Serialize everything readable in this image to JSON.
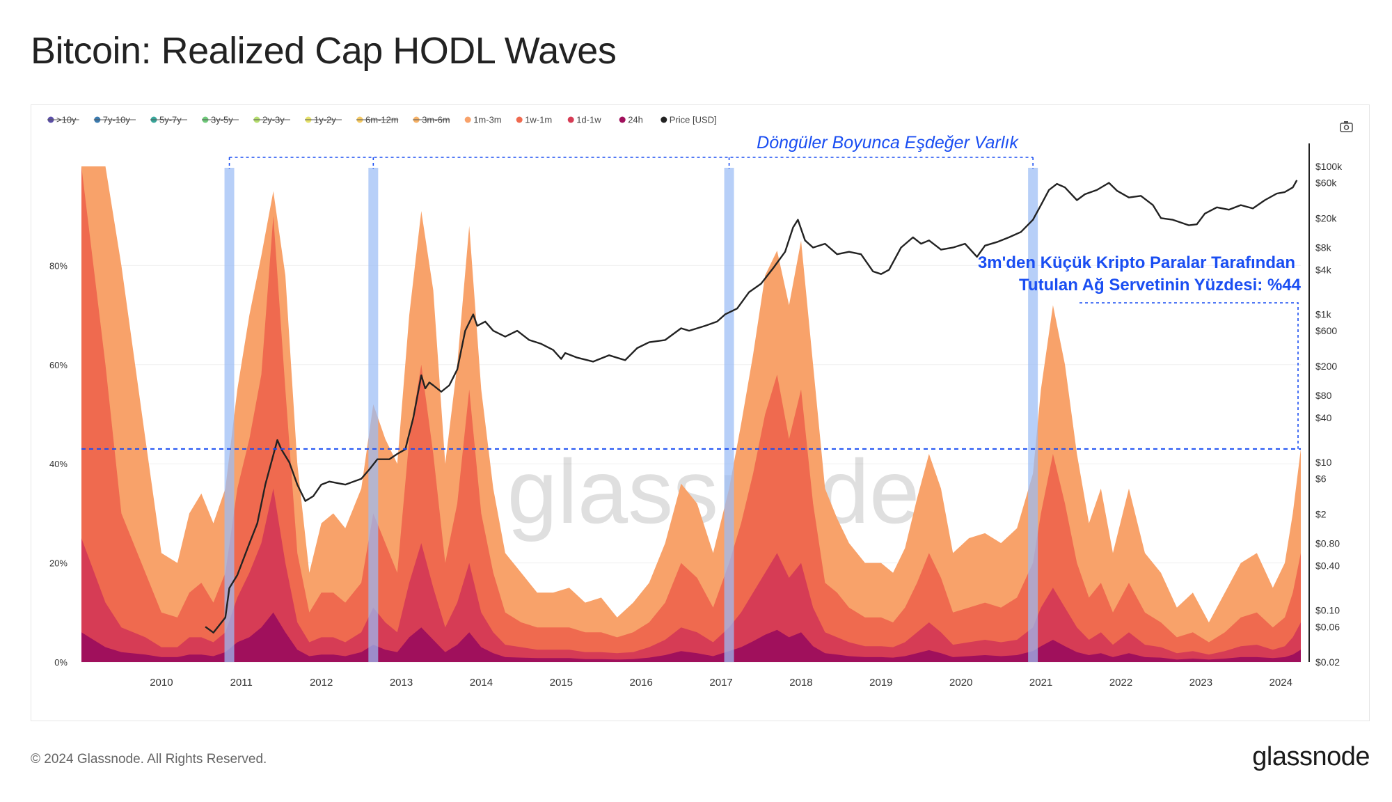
{
  "header": {
    "title": "Bitcoin: Realized Cap HODL Waves"
  },
  "footer": {
    "copyright": "© 2024 Glassnode. All Rights Reserved.",
    "logo": "glassnode"
  },
  "chart_data": {
    "type": "area",
    "title": "Bitcoin: Realized Cap HODL Waves",
    "watermark": "glassnode",
    "x_range": [
      2009.0,
      2024.25
    ],
    "x_ticks": [
      "2010",
      "2011",
      "2012",
      "2013",
      "2014",
      "2015",
      "2016",
      "2017",
      "2018",
      "2019",
      "2020",
      "2021",
      "2022",
      "2023",
      "2024"
    ],
    "y_left": {
      "range": [
        0,
        100
      ],
      "ticks": [
        "0%",
        "20%",
        "40%",
        "60%",
        "80%"
      ],
      "tick_values": [
        0,
        20,
        40,
        60,
        80
      ]
    },
    "y_right": {
      "scale": "log",
      "range": [
        0.02,
        100000
      ],
      "ticks": [
        "$0.02",
        "$0.06",
        "$0.10",
        "$0.40",
        "$0.80",
        "$2",
        "$6",
        "$10",
        "$40",
        "$80",
        "$200",
        "$600",
        "$1k",
        "$4k",
        "$8k",
        "$20k",
        "$60k",
        "$100k"
      ],
      "tick_values": [
        0.02,
        0.06,
        0.1,
        0.4,
        0.8,
        2,
        6,
        10,
        40,
        80,
        200,
        600,
        1000,
        4000,
        8000,
        20000,
        60000,
        100000
      ]
    },
    "legend": [
      {
        "label": ">10y",
        "color": "#5b4ea8",
        "disabled": true
      },
      {
        "label": "7y-10y",
        "color": "#3a7bb0",
        "disabled": true
      },
      {
        "label": "5y-7y",
        "color": "#38a69a",
        "disabled": true
      },
      {
        "label": "3y-5y",
        "color": "#6fca7a",
        "disabled": true
      },
      {
        "label": "2y-3y",
        "color": "#b5de6e",
        "disabled": true
      },
      {
        "label": "1y-2y",
        "color": "#e6e26a",
        "disabled": true
      },
      {
        "label": "6m-12m",
        "color": "#f5c962",
        "disabled": true
      },
      {
        "label": "3m-6m",
        "color": "#f7b267",
        "disabled": true
      },
      {
        "label": "1m-3m",
        "color": "#f8a26a",
        "disabled": false
      },
      {
        "label": "1w-1m",
        "color": "#ef6a4f",
        "disabled": false
      },
      {
        "label": "1d-1w",
        "color": "#d63c55",
        "disabled": false
      },
      {
        "label": "24h",
        "color": "#a0105c",
        "disabled": false
      },
      {
        "label": "Price [USD]",
        "color": "#222222",
        "disabled": false
      }
    ],
    "series": [
      {
        "name": "1m-3m",
        "color": "#f8a26a",
        "x": [
          2009.0,
          2009.3,
          2009.5,
          2009.8,
          2010.0,
          2010.2,
          2010.35,
          2010.5,
          2010.65,
          2010.8,
          2010.95,
          2011.1,
          2011.25,
          2011.4,
          2011.55,
          2011.7,
          2011.85,
          2012.0,
          2012.15,
          2012.3,
          2012.5,
          2012.65,
          2012.8,
          2012.95,
          2013.1,
          2013.25,
          2013.4,
          2013.55,
          2013.7,
          2013.85,
          2014.0,
          2014.15,
          2014.3,
          2014.5,
          2014.7,
          2014.9,
          2015.1,
          2015.3,
          2015.5,
          2015.7,
          2015.9,
          2016.1,
          2016.3,
          2016.5,
          2016.7,
          2016.9,
          2017.1,
          2017.25,
          2017.4,
          2017.55,
          2017.7,
          2017.85,
          2018.0,
          2018.15,
          2018.3,
          2018.45,
          2018.6,
          2018.8,
          2019.0,
          2019.15,
          2019.3,
          2019.45,
          2019.6,
          2019.75,
          2019.9,
          2020.1,
          2020.3,
          2020.5,
          2020.7,
          2020.9,
          2021.0,
          2021.15,
          2021.3,
          2021.45,
          2021.6,
          2021.75,
          2021.9,
          2022.1,
          2022.3,
          2022.5,
          2022.7,
          2022.9,
          2023.1,
          2023.3,
          2023.5,
          2023.7,
          2023.9,
          2024.05,
          2024.15,
          2024.25
        ],
        "values": [
          100,
          100,
          80,
          45,
          22,
          20,
          30,
          34,
          28,
          35,
          55,
          70,
          82,
          95,
          78,
          40,
          18,
          28,
          30,
          27,
          35,
          52,
          45,
          40,
          70,
          91,
          75,
          40,
          60,
          88,
          55,
          35,
          22,
          18,
          14,
          14,
          15,
          12,
          13,
          9,
          12,
          16,
          24,
          36,
          32,
          22,
          35,
          48,
          62,
          78,
          83,
          72,
          85,
          60,
          35,
          29,
          24,
          20,
          20,
          18,
          23,
          33,
          42,
          35,
          22,
          25,
          26,
          24,
          27,
          38,
          55,
          72,
          60,
          42,
          28,
          35,
          22,
          35,
          22,
          18,
          11,
          14,
          8,
          14,
          20,
          22,
          15,
          20,
          30,
          43
        ]
      },
      {
        "name": "1w-1m",
        "color": "#ef6a4f",
        "x": [
          2009.0,
          2009.3,
          2009.5,
          2009.8,
          2010.0,
          2010.2,
          2010.35,
          2010.5,
          2010.65,
          2010.8,
          2010.95,
          2011.1,
          2011.25,
          2011.4,
          2011.55,
          2011.7,
          2011.85,
          2012.0,
          2012.15,
          2012.3,
          2012.5,
          2012.65,
          2012.8,
          2012.95,
          2013.1,
          2013.25,
          2013.4,
          2013.55,
          2013.7,
          2013.85,
          2014.0,
          2014.15,
          2014.3,
          2014.5,
          2014.7,
          2014.9,
          2015.1,
          2015.3,
          2015.5,
          2015.7,
          2015.9,
          2016.1,
          2016.3,
          2016.5,
          2016.7,
          2016.9,
          2017.1,
          2017.25,
          2017.4,
          2017.55,
          2017.7,
          2017.85,
          2018.0,
          2018.15,
          2018.3,
          2018.45,
          2018.6,
          2018.8,
          2019.0,
          2019.15,
          2019.3,
          2019.45,
          2019.6,
          2019.75,
          2019.9,
          2020.1,
          2020.3,
          2020.5,
          2020.7,
          2020.9,
          2021.0,
          2021.15,
          2021.3,
          2021.45,
          2021.6,
          2021.75,
          2021.9,
          2022.1,
          2022.3,
          2022.5,
          2022.7,
          2022.9,
          2023.1,
          2023.3,
          2023.5,
          2023.7,
          2023.9,
          2024.05,
          2024.15,
          2024.25
        ],
        "values": [
          100,
          60,
          30,
          18,
          10,
          9,
          14,
          16,
          12,
          18,
          35,
          45,
          58,
          90,
          55,
          22,
          10,
          14,
          14,
          12,
          16,
          30,
          24,
          18,
          45,
          60,
          42,
          20,
          32,
          55,
          30,
          18,
          10,
          8,
          7,
          7,
          7,
          6,
          6,
          5,
          6,
          8,
          12,
          20,
          17,
          11,
          20,
          28,
          38,
          50,
          58,
          45,
          55,
          32,
          16,
          14,
          11,
          9,
          9,
          8,
          11,
          16,
          22,
          17,
          10,
          11,
          12,
          11,
          13,
          20,
          30,
          42,
          32,
          20,
          13,
          16,
          10,
          16,
          10,
          8,
          5,
          6,
          4,
          6,
          9,
          10,
          7,
          9,
          14,
          22
        ]
      },
      {
        "name": "1d-1w",
        "color": "#d63c55",
        "x": [
          2009.0,
          2009.3,
          2009.5,
          2009.8,
          2010.0,
          2010.2,
          2010.35,
          2010.5,
          2010.65,
          2010.8,
          2010.95,
          2011.1,
          2011.25,
          2011.4,
          2011.55,
          2011.7,
          2011.85,
          2012.0,
          2012.15,
          2012.3,
          2012.5,
          2012.65,
          2012.8,
          2012.95,
          2013.1,
          2013.25,
          2013.4,
          2013.55,
          2013.7,
          2013.85,
          2014.0,
          2014.15,
          2014.3,
          2014.5,
          2014.7,
          2014.9,
          2015.1,
          2015.3,
          2015.5,
          2015.7,
          2015.9,
          2016.1,
          2016.3,
          2016.5,
          2016.7,
          2016.9,
          2017.1,
          2017.25,
          2017.4,
          2017.55,
          2017.7,
          2017.85,
          2018.0,
          2018.15,
          2018.3,
          2018.45,
          2018.6,
          2018.8,
          2019.0,
          2019.15,
          2019.3,
          2019.45,
          2019.6,
          2019.75,
          2019.9,
          2020.1,
          2020.3,
          2020.5,
          2020.7,
          2020.9,
          2021.0,
          2021.15,
          2021.3,
          2021.45,
          2021.6,
          2021.75,
          2021.9,
          2022.1,
          2022.3,
          2022.5,
          2022.7,
          2022.9,
          2023.1,
          2023.3,
          2023.5,
          2023.7,
          2023.9,
          2024.05,
          2024.15,
          2024.25
        ],
        "values": [
          25,
          12,
          7,
          5,
          3,
          3,
          5,
          5,
          4,
          6,
          13,
          18,
          24,
          35,
          20,
          8,
          4,
          5,
          5,
          4,
          6,
          11,
          8,
          6,
          16,
          24,
          15,
          7,
          12,
          20,
          10,
          6,
          3.5,
          3,
          2.5,
          2.5,
          2.5,
          2,
          2,
          1.8,
          2,
          3,
          4.5,
          7,
          6,
          4,
          7,
          10,
          14,
          18,
          22,
          17,
          20,
          11,
          6,
          5,
          4,
          3.2,
          3.2,
          3,
          4,
          6,
          8,
          6,
          3.5,
          4,
          4.5,
          4,
          4.5,
          7,
          11,
          15,
          11,
          7,
          4.5,
          6,
          3.5,
          6,
          3.5,
          3,
          1.8,
          2.2,
          1.5,
          2.2,
          3.2,
          3.5,
          2.5,
          3.2,
          5,
          8
        ]
      },
      {
        "name": "24h",
        "color": "#a0105c",
        "x": [
          2009.0,
          2009.3,
          2009.5,
          2009.8,
          2010.0,
          2010.2,
          2010.35,
          2010.5,
          2010.65,
          2010.8,
          2010.95,
          2011.1,
          2011.25,
          2011.4,
          2011.55,
          2011.7,
          2011.85,
          2012.0,
          2012.15,
          2012.3,
          2012.5,
          2012.65,
          2012.8,
          2012.95,
          2013.1,
          2013.25,
          2013.4,
          2013.55,
          2013.7,
          2013.85,
          2014.0,
          2014.15,
          2014.3,
          2014.5,
          2014.7,
          2014.9,
          2015.1,
          2015.3,
          2015.5,
          2015.7,
          2015.9,
          2016.1,
          2016.3,
          2016.5,
          2016.7,
          2016.9,
          2017.1,
          2017.25,
          2017.4,
          2017.55,
          2017.7,
          2017.85,
          2018.0,
          2018.15,
          2018.3,
          2018.45,
          2018.6,
          2018.8,
          2019.0,
          2019.15,
          2019.3,
          2019.45,
          2019.6,
          2019.75,
          2019.9,
          2020.1,
          2020.3,
          2020.5,
          2020.7,
          2020.9,
          2021.0,
          2021.15,
          2021.3,
          2021.45,
          2021.6,
          2021.75,
          2021.9,
          2022.1,
          2022.3,
          2022.5,
          2022.7,
          2022.9,
          2023.1,
          2023.3,
          2023.5,
          2023.7,
          2023.9,
          2024.05,
          2024.15,
          2024.25
        ],
        "values": [
          6,
          3,
          2,
          1.5,
          1,
          1,
          1.5,
          1.5,
          1.2,
          2,
          4,
          5,
          7,
          10,
          6,
          2.5,
          1.2,
          1.5,
          1.5,
          1.2,
          2,
          3.5,
          2.5,
          2,
          5,
          7,
          4.5,
          2,
          3.5,
          6,
          3,
          1.8,
          1,
          0.9,
          0.8,
          0.8,
          0.8,
          0.6,
          0.6,
          0.5,
          0.6,
          0.9,
          1.4,
          2.2,
          1.8,
          1.2,
          2.2,
          3,
          4.2,
          5.5,
          6.5,
          5,
          6,
          3.2,
          1.8,
          1.5,
          1.2,
          1,
          1,
          0.9,
          1.2,
          1.8,
          2.4,
          1.8,
          1,
          1.2,
          1.4,
          1.2,
          1.4,
          2.2,
          3.2,
          4.5,
          3.2,
          2,
          1.4,
          1.8,
          1,
          1.8,
          1,
          0.9,
          0.5,
          0.7,
          0.5,
          0.7,
          1,
          1,
          0.8,
          1,
          1.5,
          2.5
        ]
      },
      {
        "name": "Price [USD]",
        "color": "#222222",
        "x": [
          2010.55,
          2010.65,
          2010.8,
          2010.85,
          2010.95,
          2011.1,
          2011.2,
          2011.3,
          2011.45,
          2011.5,
          2011.6,
          2011.7,
          2011.8,
          2011.9,
          2012.0,
          2012.1,
          2012.3,
          2012.5,
          2012.6,
          2012.7,
          2012.85,
          2012.95,
          2013.05,
          2013.15,
          2013.25,
          2013.3,
          2013.35,
          2013.4,
          2013.5,
          2013.6,
          2013.7,
          2013.8,
          2013.9,
          2013.95,
          2014.05,
          2014.15,
          2014.3,
          2014.45,
          2014.6,
          2014.75,
          2014.9,
          2015.0,
          2015.05,
          2015.2,
          2015.4,
          2015.6,
          2015.8,
          2015.95,
          2016.1,
          2016.3,
          2016.5,
          2016.6,
          2016.8,
          2016.95,
          2017.05,
          2017.2,
          2017.35,
          2017.5,
          2017.65,
          2017.8,
          2017.9,
          2017.96,
          2018.05,
          2018.15,
          2018.3,
          2018.45,
          2018.6,
          2018.75,
          2018.9,
          2019.0,
          2019.1,
          2019.25,
          2019.4,
          2019.5,
          2019.6,
          2019.75,
          2019.9,
          2020.05,
          2020.2,
          2020.3,
          2020.45,
          2020.6,
          2020.75,
          2020.9,
          2021.0,
          2021.1,
          2021.2,
          2021.3,
          2021.45,
          2021.55,
          2021.7,
          2021.85,
          2021.95,
          2022.1,
          2022.25,
          2022.4,
          2022.5,
          2022.65,
          2022.85,
          2022.95,
          2023.05,
          2023.2,
          2023.35,
          2023.5,
          2023.65,
          2023.8,
          2023.95,
          2024.05,
          2024.15,
          2024.2
        ],
        "values": [
          0.06,
          0.05,
          0.08,
          0.2,
          0.3,
          0.8,
          1.5,
          5,
          20,
          15,
          10,
          5,
          3,
          3.5,
          5,
          5.5,
          5,
          6,
          8,
          11,
          11,
          13,
          15,
          40,
          150,
          100,
          120,
          110,
          90,
          110,
          180,
          600,
          1000,
          700,
          800,
          600,
          500,
          600,
          450,
          400,
          330,
          250,
          300,
          260,
          230,
          280,
          240,
          350,
          420,
          450,
          650,
          600,
          700,
          800,
          1000,
          1200,
          2000,
          2600,
          4200,
          7000,
          15000,
          19000,
          10000,
          8000,
          9000,
          6500,
          7000,
          6500,
          3800,
          3500,
          4000,
          8000,
          11000,
          9000,
          10000,
          7500,
          8000,
          9000,
          6000,
          8500,
          9500,
          11000,
          13000,
          19000,
          30000,
          48000,
          58000,
          52000,
          35000,
          42000,
          48000,
          60000,
          47000,
          38000,
          40000,
          30000,
          20000,
          19000,
          16000,
          16500,
          23000,
          28000,
          26000,
          30000,
          27000,
          35000,
          43000,
          45000,
          52000,
          65000
        ]
      }
    ],
    "annotations": [
      {
        "type": "text",
        "text": "Döngüler Boyunca Eşdeğer Varlık",
        "color": "#1a4ef2"
      },
      {
        "type": "text",
        "text": "3m'den Küçük Kripto Paralar Tarafından",
        "color": "#1a4ef2"
      },
      {
        "type": "text",
        "text": "Tutulan Ağ Servetinin Yüzdesi: %44",
        "color": "#1a4ef2"
      },
      {
        "type": "hline",
        "y": 43,
        "style": "dashed",
        "color": "#1a4ef2"
      },
      {
        "type": "vbands",
        "x": [
          2010.85,
          2012.65,
          2017.1,
          2020.9
        ],
        "color": "#9bbcf5"
      }
    ]
  }
}
